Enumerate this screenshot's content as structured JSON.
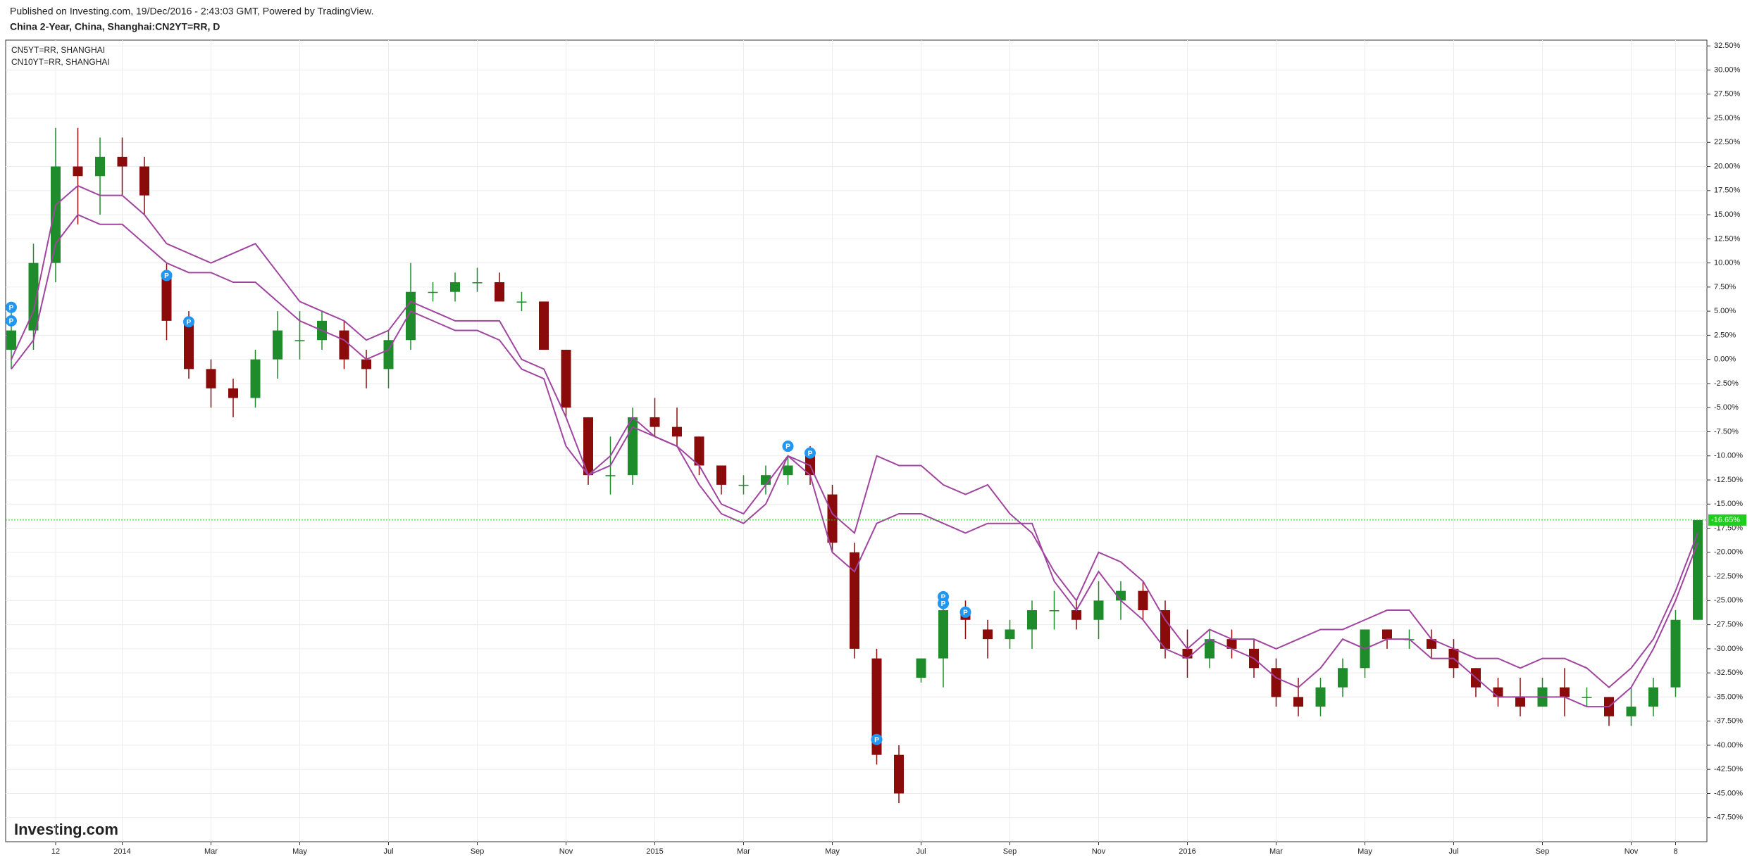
{
  "chart_data": {
    "type": "candlestick",
    "header": "Published on Investing.com, 19/Dec/2016 - 2:43:03 GMT, Powered by TradingView.",
    "title": "China 2-Year, China, Shanghai:CN2YT=RR, D",
    "logo": "Investing.com",
    "categories": [
      null,
      null,
      "12",
      null,
      null,
      "2014",
      null,
      null,
      null,
      "Mar",
      null,
      null,
      null,
      "May",
      null,
      null,
      null,
      "Jul",
      null,
      null,
      null,
      "Sep",
      null,
      null,
      null,
      "Nov",
      null,
      null,
      null,
      "2015",
      null,
      null,
      null,
      "Mar",
      null,
      null,
      null,
      "May",
      null,
      null,
      null,
      "Jul",
      null,
      null,
      null,
      "Sep",
      null,
      null,
      null,
      "Nov",
      null,
      null,
      null,
      "2016",
      null,
      null,
      null,
      "Mar",
      null,
      null,
      null,
      "May",
      null,
      null,
      null,
      "Jul",
      null,
      null,
      null,
      "Sep",
      null,
      null,
      null,
      "Nov",
      null,
      "8",
      null
    ],
    "open": [
      1,
      3,
      10,
      20,
      19,
      21,
      20,
      9,
      4,
      -1,
      -3,
      -4,
      0,
      2,
      2,
      3,
      0,
      -1,
      2,
      7,
      7,
      8,
      8,
      6,
      6,
      1,
      -6,
      -12,
      -12,
      -6,
      -7,
      -8,
      -11,
      -13,
      -13,
      -12,
      -10,
      -14,
      -20,
      -31,
      -41,
      -33,
      -31,
      -26,
      -28,
      -29,
      -28,
      -26,
      -26,
      -27,
      -25,
      -24,
      -26,
      -30,
      -31,
      -29,
      -30,
      -32,
      -35,
      -36,
      -34,
      -32,
      -28,
      -29,
      -29,
      -30,
      -32,
      -34,
      -35,
      -36,
      -34,
      -35,
      -35,
      -37,
      -36,
      -34,
      -27
    ],
    "high": [
      5,
      12,
      24,
      24,
      23,
      23,
      21,
      10,
      5,
      0,
      -2,
      1,
      5,
      5,
      5,
      4,
      1,
      3,
      10,
      8,
      9,
      9.5,
      9,
      7,
      6,
      1,
      -6,
      -8,
      -5,
      -4,
      -5,
      -8,
      -11,
      -12,
      -11,
      -10,
      -9,
      -13,
      -19,
      -30,
      -40,
      -31,
      -25,
      -25,
      -27,
      -27,
      -25,
      -24,
      -25,
      -23,
      -23,
      -23,
      -25,
      -28,
      -28,
      -28,
      -29,
      -31,
      -33,
      -33,
      -31,
      -28,
      -28,
      -28,
      -28,
      -29,
      -32,
      -33,
      -33,
      -33,
      -32,
      -34,
      -35,
      -34,
      -33,
      -26,
      -16.65
    ],
    "low": [
      -1,
      1,
      8,
      14,
      15,
      17,
      15,
      2,
      -2,
      -5,
      -6,
      -5,
      -2,
      0,
      1,
      -1,
      -3,
      -3,
      1,
      6,
      6,
      7,
      6,
      5,
      1,
      -6,
      -13,
      -14,
      -13,
      -8,
      -9,
      -12,
      -14,
      -14,
      -14,
      -13,
      -13,
      -20,
      -31,
      -42,
      -46,
      -33.5,
      -34,
      -29,
      -31,
      -30,
      -30,
      -28,
      -28,
      -29,
      -27,
      -27,
      -31,
      -33,
      -32,
      -31,
      -33,
      -36,
      -37,
      -37,
      -35,
      -33,
      -30,
      -30,
      -31,
      -33,
      -35,
      -36,
      -37,
      -36,
      -37,
      -36,
      -38,
      -38,
      -37,
      -35,
      -27
    ],
    "close": [
      3,
      10,
      20,
      19,
      21,
      20,
      17,
      4,
      -1,
      -3,
      -4,
      0,
      3,
      2,
      4,
      0,
      -1,
      2,
      7,
      7,
      8,
      8,
      6,
      6,
      1,
      -5,
      -12,
      -12,
      -6,
      -7,
      -8,
      -11,
      -13,
      -13,
      -12,
      -11,
      -12,
      -19,
      -30,
      -41,
      -45,
      -31,
      -26,
      -27,
      -29,
      -28,
      -26,
      -26,
      -27,
      -25,
      -24,
      -26,
      -30,
      -31,
      -29,
      -30,
      -32,
      -35,
      -36,
      -34,
      -32,
      -28,
      -29,
      -29,
      -30,
      -32,
      -34,
      -35,
      -36,
      -34,
      -35,
      -35,
      -37,
      -36,
      -34,
      -27,
      -16.65
    ],
    "up_color": "#1e8c2a",
    "down_color": "#8b0a0a",
    "series": [
      {
        "name": "CN5YT=RR, SHANGHAI",
        "color": "#a0459f",
        "values": [
          0,
          5,
          16,
          18,
          17,
          17,
          15,
          12,
          11,
          10,
          11,
          12,
          9,
          6,
          5,
          4,
          2,
          3,
          6,
          5,
          4,
          4,
          4,
          0,
          -1,
          -6,
          -12,
          -10,
          -6,
          -8,
          -9,
          -11,
          -15,
          -16,
          -13,
          -10,
          -11,
          -16,
          -18,
          -10,
          -11,
          -11,
          -13,
          -14,
          -13,
          -16,
          -18,
          -22,
          -25,
          -20,
          -21,
          -23,
          -27,
          -30,
          -28,
          -29,
          -29,
          -30,
          -29,
          -28,
          -28,
          -27,
          -26,
          -26,
          -29,
          -30,
          -31,
          -31,
          -32,
          -31,
          -31,
          -32,
          -34,
          -32,
          -29,
          -24,
          -18
        ]
      },
      {
        "name": "CN10YT=RR, SHANGHAI",
        "color": "#a0459f",
        "values": [
          -1,
          2,
          12,
          15,
          14,
          14,
          12,
          10,
          9,
          9,
          8,
          8,
          6,
          4,
          3,
          2,
          0,
          1,
          5,
          4,
          3,
          3,
          2,
          -1,
          -2,
          -9,
          -12,
          -11,
          -7,
          -8,
          -9,
          -13,
          -16,
          -17,
          -15,
          -10,
          -12,
          -20,
          -22,
          -17,
          -16,
          -16,
          -17,
          -18,
          -17,
          -17,
          -17,
          -23,
          -26,
          -22,
          -25,
          -27,
          -30,
          -31,
          -29,
          -30,
          -31,
          -33,
          -34,
          -32,
          -29,
          -30,
          -29,
          -29,
          -31,
          -31,
          -33,
          -35,
          -35,
          -35,
          -35,
          -36,
          -36,
          -34,
          -30,
          -25,
          -19
        ]
      }
    ],
    "flags": [
      {
        "at": 0,
        "value": 5.4,
        "text": "P"
      },
      {
        "at": 0,
        "value": 4,
        "text": "P"
      },
      {
        "at": 7,
        "value": 8.7,
        "text": "P"
      },
      {
        "at": 8,
        "value": 3.9,
        "text": "P"
      },
      {
        "at": 35,
        "value": -9,
        "text": "P"
      },
      {
        "at": 36,
        "value": -9.7,
        "text": "P"
      },
      {
        "at": 39,
        "value": -39.4,
        "text": "P"
      },
      {
        "at": 42,
        "value": -24.6,
        "text": "P"
      },
      {
        "at": 42,
        "value": -25.3,
        "text": "P"
      },
      {
        "at": 43,
        "value": -26.2,
        "text": "P"
      }
    ],
    "last_price": {
      "value": -16.65,
      "label": "-16.65%",
      "color": "#1fcc1f"
    },
    "ylim": [
      -50,
      33.1
    ],
    "yticks": [
      {
        "value": 32.5,
        "label": "32.50%"
      },
      {
        "value": 30,
        "label": "30.00%"
      },
      {
        "value": 27.5,
        "label": "27.50%"
      },
      {
        "value": 25,
        "label": "25.00%"
      },
      {
        "value": 22.5,
        "label": "22.50%"
      },
      {
        "value": 20,
        "label": "20.00%"
      },
      {
        "value": 17.5,
        "label": "17.50%"
      },
      {
        "value": 15,
        "label": "15.00%"
      },
      {
        "value": 12.5,
        "label": "12.50%"
      },
      {
        "value": 10,
        "label": "10.00%"
      },
      {
        "value": 7.5,
        "label": "7.50%"
      },
      {
        "value": 5,
        "label": "5.00%"
      },
      {
        "value": 2.5,
        "label": "2.50%"
      },
      {
        "value": 0,
        "label": "0.00%"
      },
      {
        "value": -2.5,
        "label": "-2.50%"
      },
      {
        "value": -5,
        "label": "-5.00%"
      },
      {
        "value": -7.5,
        "label": "-7.50%"
      },
      {
        "value": -10,
        "label": "-10.00%"
      },
      {
        "value": -12.5,
        "label": "-12.50%"
      },
      {
        "value": -15,
        "label": "-15.00%"
      },
      {
        "value": -17.5,
        "label": "-17.50%"
      },
      {
        "value": -20,
        "label": "-20.00%"
      },
      {
        "value": -22.5,
        "label": "-22.50%"
      },
      {
        "value": -25,
        "label": "-25.00%"
      },
      {
        "value": -27.5,
        "label": "-27.50%"
      },
      {
        "value": -30,
        "label": "-30.00%"
      },
      {
        "value": -32.5,
        "label": "-32.50%"
      },
      {
        "value": -35,
        "label": "-35.00%"
      },
      {
        "value": -37.5,
        "label": "-37.50%"
      },
      {
        "value": -40,
        "label": "-40.00%"
      },
      {
        "value": -42.5,
        "label": "-42.50%"
      },
      {
        "value": -45,
        "label": "-45.00%"
      },
      {
        "value": -47.5,
        "label": "-47.50%"
      }
    ],
    "grid": true
  }
}
